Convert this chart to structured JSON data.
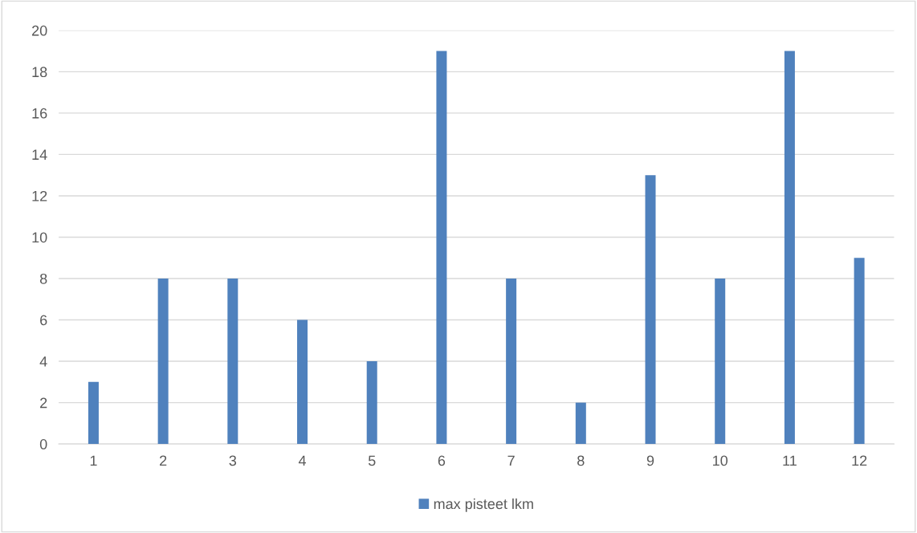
{
  "chart_data": {
    "type": "bar",
    "categories": [
      "1",
      "2",
      "3",
      "4",
      "5",
      "6",
      "7",
      "8",
      "9",
      "10",
      "11",
      "12"
    ],
    "series": [
      {
        "name": "max pisteet lkm",
        "color": "#4f81bd",
        "values": [
          3,
          8,
          8,
          6,
          4,
          19,
          8,
          2,
          13,
          8,
          19,
          9
        ]
      }
    ],
    "ylim": [
      0,
      20
    ],
    "yticks": [
      0,
      2,
      4,
      6,
      8,
      10,
      12,
      14,
      16,
      18,
      20
    ],
    "grid": "y",
    "legend": "bottom"
  }
}
